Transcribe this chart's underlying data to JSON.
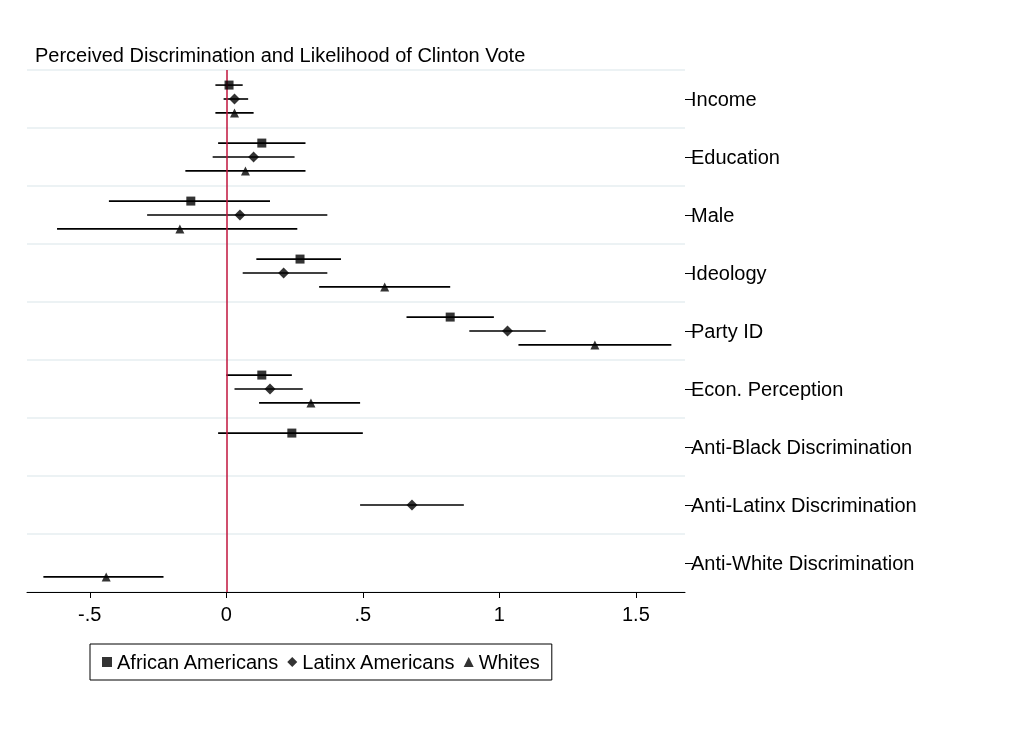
{
  "chart_data": {
    "type": "scatter",
    "orientation": "horizontal",
    "title": "Perceived Discrimination and Likelihood of Clinton Vote",
    "categories": [
      "Income",
      "Education",
      "Male",
      "Ideology",
      "Party ID",
      "Econ. Perception",
      "Anti-Black Discrimination",
      "Anti-Latinx Discrimination",
      "Anti-White Discrimination"
    ],
    "series": [
      {
        "name": "African Americans",
        "color": "#000000",
        "marker": "square",
        "values": [
          0.01,
          0.13,
          -0.13,
          0.27,
          0.82,
          0.13,
          0.24,
          null,
          null
        ],
        "errors": [
          [
            -0.04,
            0.06
          ],
          [
            -0.03,
            0.29
          ],
          [
            -0.43,
            0.16
          ],
          [
            0.11,
            0.42
          ],
          [
            0.66,
            0.98
          ],
          [
            0.0,
            0.24
          ],
          [
            -0.03,
            0.5
          ],
          null,
          null
        ]
      },
      {
        "name": "Latinx Americans",
        "color": "#000000",
        "marker": "diamond",
        "values": [
          0.03,
          0.1,
          0.05,
          0.21,
          1.03,
          0.16,
          null,
          0.68,
          null
        ],
        "errors": [
          [
            -0.01,
            0.08
          ],
          [
            -0.05,
            0.25
          ],
          [
            -0.29,
            0.37
          ],
          [
            0.06,
            0.37
          ],
          [
            0.89,
            1.17
          ],
          [
            0.03,
            0.28
          ],
          null,
          [
            0.49,
            0.87
          ],
          null
        ]
      },
      {
        "name": "Whites",
        "color": "#000000",
        "marker": "triangle",
        "values": [
          0.03,
          0.07,
          -0.17,
          0.58,
          1.35,
          0.31,
          null,
          null,
          -0.44
        ],
        "errors": [
          [
            -0.04,
            0.1
          ],
          [
            -0.15,
            0.29
          ],
          [
            -0.62,
            0.26
          ],
          [
            0.34,
            0.82
          ],
          [
            1.07,
            1.63
          ],
          [
            0.12,
            0.49
          ],
          null,
          null,
          [
            -0.67,
            -0.23
          ]
        ]
      }
    ],
    "xlim": [
      -0.73,
      1.68
    ],
    "xticks": [
      {
        "value": -0.5,
        "label": "-.5"
      },
      0,
      {
        "value": 0.5,
        "label": ".5"
      },
      1,
      1.5
    ],
    "ref_lines": [
      {
        "axis": "x",
        "value": 0,
        "color": "#c0143c"
      }
    ],
    "grid": "y",
    "legend": "bottom"
  }
}
